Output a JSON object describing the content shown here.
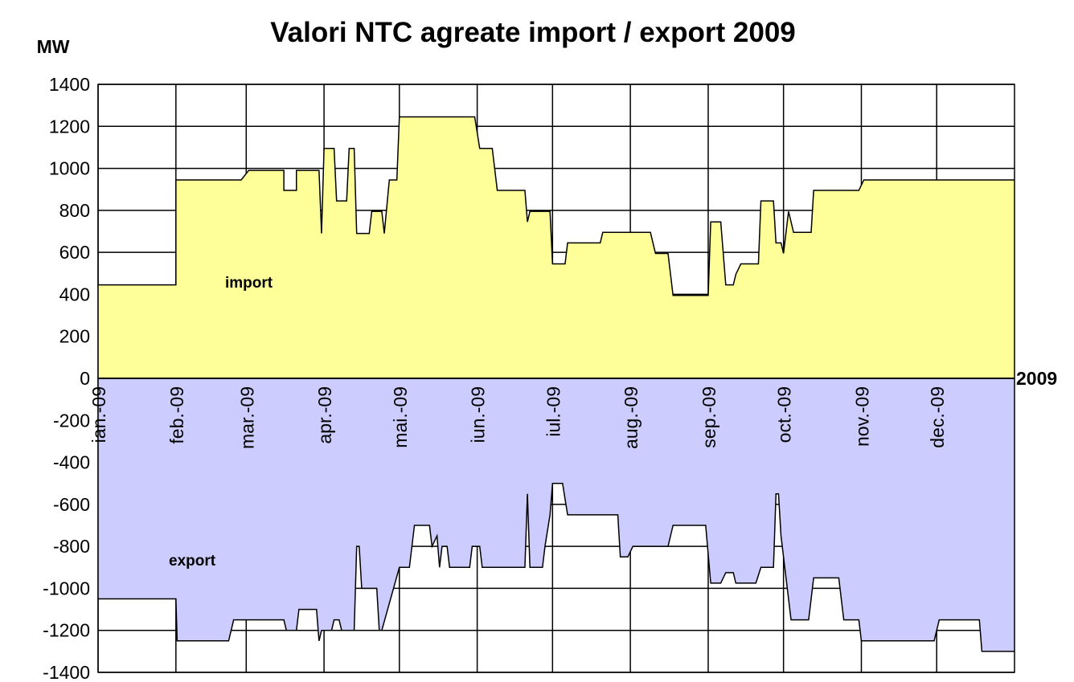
{
  "chart_data": {
    "type": "area",
    "title": "Valori NTC agreate import / export 2009",
    "y_label": "MW",
    "x_label": "2009",
    "annotations": [
      "import",
      "export"
    ],
    "xlim": [
      0,
      365
    ],
    "xticks": [
      {
        "value": 0,
        "label": "ian.-09"
      },
      {
        "value": 31,
        "label": "feb.-09"
      },
      {
        "value": 59,
        "label": "mar.-09"
      },
      {
        "value": 90,
        "label": "apr.-09"
      },
      {
        "value": 120,
        "label": "mai.-09"
      },
      {
        "value": 151,
        "label": "iun.-09"
      },
      {
        "value": 181,
        "label": "iul.-09"
      },
      {
        "value": 212,
        "label": "aug.-09"
      },
      {
        "value": 243,
        "label": "sep.-09"
      },
      {
        "value": 273,
        "label": "oct.-09"
      },
      {
        "value": 304,
        "label": "nov.-09"
      },
      {
        "value": 334,
        "label": "dec.-09"
      }
    ],
    "ylim": [
      -1400,
      1400
    ],
    "yticks": [
      -1400,
      -1200,
      -1000,
      -800,
      -600,
      -400,
      -200,
      0,
      200,
      400,
      600,
      800,
      1000,
      1200,
      1400
    ],
    "grid": true,
    "series": [
      {
        "name": "import",
        "color": "#ffff99",
        "x": [
          0,
          31,
          31,
          57,
          60,
          74,
          74,
          79,
          79,
          88,
          89,
          90,
          94,
          95,
          99,
          100,
          102,
          103,
          108,
          109,
          113,
          114,
          116,
          119,
          120,
          150,
          152,
          157,
          159,
          170,
          171,
          172,
          180,
          181,
          186,
          187,
          200,
          201,
          220,
          222,
          227,
          229,
          243,
          244,
          248,
          250,
          253,
          254,
          256,
          263,
          264,
          269,
          270,
          272,
          273,
          275,
          277,
          284,
          285,
          303,
          305,
          365
        ],
        "values": [
          445,
          445,
          945,
          945,
          990,
          990,
          895,
          895,
          990,
          990,
          690,
          1095,
          1095,
          845,
          845,
          1095,
          1095,
          690,
          690,
          795,
          795,
          690,
          945,
          945,
          1245,
          1245,
          1095,
          1095,
          895,
          895,
          745,
          795,
          795,
          545,
          545,
          645,
          645,
          695,
          695,
          595,
          595,
          395,
          395,
          745,
          745,
          445,
          445,
          495,
          545,
          545,
          845,
          845,
          645,
          645,
          595,
          795,
          695,
          695,
          895,
          895,
          945,
          945
        ]
      },
      {
        "name": "export",
        "color": "#ccccff",
        "x": [
          0,
          31,
          31.5,
          52,
          54,
          74,
          75,
          79,
          80,
          87,
          88,
          89,
          93,
          94,
          96,
          97,
          102,
          103,
          104,
          105,
          111,
          112,
          113,
          120,
          124,
          126,
          132,
          133,
          135,
          136,
          137,
          139,
          140,
          148,
          149,
          152,
          153,
          170,
          171,
          172,
          177,
          178,
          180,
          181,
          185,
          187,
          207,
          208,
          211,
          213,
          227,
          229,
          242,
          244,
          248,
          250,
          253,
          254,
          262,
          264,
          269,
          270,
          271,
          272,
          276,
          283,
          285,
          295,
          297,
          303,
          304,
          333,
          335,
          351,
          352,
          365
        ],
        "values": [
          -1050,
          -1050,
          -1250,
          -1250,
          -1150,
          -1150,
          -1200,
          -1200,
          -1100,
          -1100,
          -1250,
          -1200,
          -1200,
          -1150,
          -1150,
          -1200,
          -1200,
          -800,
          -800,
          -1000,
          -1000,
          -1200,
          -1200,
          -900,
          -900,
          -700,
          -700,
          -800,
          -750,
          -900,
          -800,
          -800,
          -900,
          -900,
          -800,
          -800,
          -900,
          -900,
          -550,
          -900,
          -900,
          -800,
          -650,
          -500,
          -500,
          -650,
          -650,
          -850,
          -850,
          -800,
          -800,
          -700,
          -700,
          -975,
          -975,
          -925,
          -925,
          -975,
          -975,
          -900,
          -900,
          -550,
          -550,
          -750,
          -1150,
          -1150,
          -950,
          -950,
          -1150,
          -1150,
          -1250,
          -1250,
          -1150,
          -1150,
          -1300,
          -1300
        ]
      }
    ]
  }
}
